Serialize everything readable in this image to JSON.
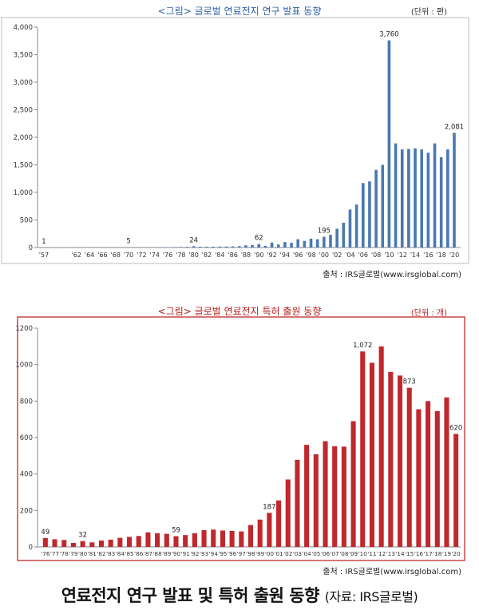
{
  "caption": {
    "main": "연료전지 연구 발표 및 특허 출원 동향",
    "source": "(자료: IRS글로벌)"
  },
  "charts": [
    {
      "title": "<그림> 글로벌 연료전지 연구 발표 동향",
      "unit": "(단위 : 편)",
      "source": "출처 : IRS글로벌(www.irsglobal.com)"
    },
    {
      "title": "<그림> 글로벌 연료전지 특허 출원 동향",
      "unit": "(단위 : 개)",
      "source": "출처 : IRS글로벌(www.irsglobal.com)"
    }
  ],
  "colors": {
    "chart1_bar": "#4a78b2",
    "chart2_bar": "#c0282d",
    "chart2_frame": "#b71c1c"
  },
  "chart_data": [
    {
      "type": "bar",
      "title": "<그림> 글로벌 연료전지 연구 발표 동향",
      "unit": "(단위 : 편)",
      "x": [
        1957,
        1962,
        1963,
        1964,
        1965,
        1966,
        1967,
        1968,
        1969,
        1970,
        1971,
        1972,
        1973,
        1974,
        1975,
        1976,
        1977,
        1978,
        1979,
        1980,
        1981,
        1982,
        1983,
        1984,
        1985,
        1986,
        1987,
        1988,
        1989,
        1990,
        1991,
        1992,
        1993,
        1994,
        1995,
        1996,
        1997,
        1998,
        1999,
        2000,
        2001,
        2002,
        2003,
        2004,
        2005,
        2006,
        2007,
        2008,
        2009,
        2010,
        2011,
        2012,
        2013,
        2014,
        2015,
        2016,
        2017,
        2018,
        2019,
        2020
      ],
      "values": [
        1,
        1,
        1,
        1,
        2,
        2,
        2,
        3,
        3,
        5,
        4,
        4,
        5,
        5,
        6,
        6,
        8,
        10,
        12,
        24,
        14,
        14,
        15,
        16,
        18,
        20,
        25,
        40,
        45,
        62,
        30,
        90,
        55,
        100,
        85,
        150,
        120,
        160,
        150,
        195,
        230,
        340,
        450,
        690,
        780,
        1170,
        1200,
        1410,
        1500,
        3760,
        1890,
        1780,
        1790,
        1800,
        1780,
        1720,
        1890,
        1640,
        1780,
        2081
      ],
      "tick_labels": [
        "'57",
        "'62",
        "'64",
        "'66",
        "'68",
        "'70",
        "'72",
        "'74",
        "'76",
        "'78",
        "'80",
        "'82",
        "'84",
        "'86",
        "'88",
        "'90",
        "'92",
        "'94",
        "'96",
        "'98",
        "'00",
        "'02",
        "'04",
        "'06",
        "'08",
        "'10",
        "'12",
        "'14",
        "'16",
        "'18",
        "'20"
      ],
      "data_labels": [
        {
          "x": 1957,
          "label": "1"
        },
        {
          "x": 1970,
          "label": "5"
        },
        {
          "x": 1980,
          "label": "24"
        },
        {
          "x": 1990,
          "label": "62"
        },
        {
          "x": 2000,
          "label": "195"
        },
        {
          "x": 2010,
          "label": "3,760"
        },
        {
          "x": 2020,
          "label": "2,081"
        }
      ],
      "y_ticks": [
        "0",
        "500",
        "1,000",
        "1,500",
        "2,000",
        "2,500",
        "3,000",
        "3,500",
        "4,000"
      ],
      "ylim": [
        0,
        4000
      ],
      "grid": false
    },
    {
      "type": "bar",
      "title": "<그림> 글로벌 연료전지 특허 출원 동향",
      "unit": "(단위 : 개)",
      "categories": [
        "'76",
        "'77",
        "'78",
        "'79",
        "'80",
        "'81",
        "'82",
        "'83",
        "'84",
        "'85",
        "'86",
        "'87",
        "'88",
        "'89",
        "'90",
        "'91",
        "'92",
        "'93",
        "'94",
        "'95",
        "'96",
        "'97",
        "'98",
        "'99",
        "'00",
        "'01",
        "'02",
        "'03",
        "'04",
        "'05",
        "'06",
        "'07",
        "'08",
        "'09",
        "'10",
        "'11",
        "'12",
        "'13",
        "'14",
        "'15",
        "'16",
        "'17",
        "'18",
        "'19",
        "'20"
      ],
      "values": [
        49,
        42,
        38,
        22,
        32,
        25,
        35,
        40,
        50,
        55,
        60,
        80,
        75,
        72,
        59,
        65,
        75,
        92,
        95,
        90,
        88,
        85,
        120,
        150,
        187,
        255,
        370,
        478,
        560,
        508,
        580,
        552,
        550,
        690,
        1072,
        1010,
        1100,
        960,
        940,
        873,
        755,
        800,
        745,
        820,
        620
      ],
      "data_labels": [
        {
          "index": 0,
          "label": "49"
        },
        {
          "index": 4,
          "label": "32"
        },
        {
          "index": 14,
          "label": "59"
        },
        {
          "index": 24,
          "label": "187"
        },
        {
          "index": 34,
          "label": "1,072"
        },
        {
          "index": 39,
          "label": "873"
        },
        {
          "index": 44,
          "label": "620"
        }
      ],
      "y_ticks": [
        "0",
        "200",
        "400",
        "600",
        "800",
        "1000",
        "1200"
      ],
      "ylim": [
        0,
        1200
      ],
      "grid": false
    }
  ]
}
